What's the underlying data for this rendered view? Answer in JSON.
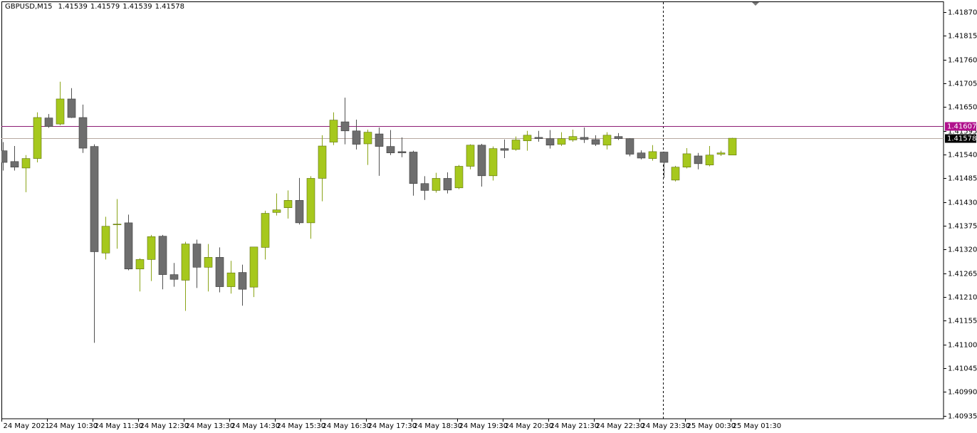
{
  "chart_data": {
    "type": "candlestick",
    "symbol": "GBPUSD,M15",
    "quote": [
      "1.41539",
      "1.41579",
      "1.41539",
      "1.41578"
    ],
    "categories": [
      "24 May 2021",
      null,
      null,
      null,
      "24 May 10:30",
      null,
      null,
      null,
      "24 May 11:30",
      null,
      null,
      null,
      "24 May 12:30",
      null,
      null,
      null,
      "24 May 13:30",
      null,
      null,
      null,
      "24 May 14:30",
      null,
      null,
      null,
      "24 May 15:30",
      null,
      null,
      null,
      "24 May 16:30",
      null,
      null,
      null,
      "24 May 17:30",
      null,
      null,
      null,
      "24 May 18:30",
      null,
      null,
      null,
      "24 May 19:30",
      null,
      null,
      null,
      "24 May 20:30",
      null,
      null,
      null,
      "24 May 21:30",
      null,
      null,
      null,
      "24 May 22:30",
      null,
      null,
      null,
      "24 May 23:30",
      null,
      null,
      null,
      "25 May 00:30",
      null,
      null,
      null,
      "25 May 01:30"
    ],
    "open": [
      1.41549,
      1.41524,
      1.41509,
      1.41531,
      1.41625,
      1.41611,
      1.41669,
      1.41626,
      1.41559,
      1.41312,
      1.41378,
      1.41382,
      1.41275,
      1.41297,
      1.41351,
      1.41262,
      1.41249,
      1.41333,
      1.41279,
      1.41302,
      1.41234,
      1.41267,
      1.41233,
      1.41325,
      1.41406,
      1.41417,
      1.41434,
      1.41382,
      1.41485,
      1.41569,
      1.41616,
      1.41595,
      1.41565,
      1.41588,
      1.41559,
      1.41547,
      1.41546,
      1.41473,
      1.41457,
      1.41485,
      1.41463,
      1.41513,
      1.41562,
      1.41491,
      1.41554,
      1.41552,
      1.41572,
      1.4158,
      1.41577,
      1.41564,
      1.41574,
      1.4158,
      1.41575,
      1.41562,
      1.41582,
      1.41577,
      1.41544,
      1.41531,
      1.41546,
      1.41481,
      1.41511,
      1.41537,
      1.41516,
      1.41541,
      1.41539
    ],
    "high": [
      1.41569,
      1.4156,
      1.41539,
      1.41638,
      1.41634,
      1.41709,
      1.41694,
      1.41656,
      1.41564,
      1.41396,
      1.41437,
      1.41401,
      1.413,
      1.41354,
      1.41354,
      1.41289,
      1.41338,
      1.41343,
      1.41333,
      1.41325,
      1.41294,
      1.41285,
      1.41326,
      1.4141,
      1.4145,
      1.41457,
      1.41486,
      1.4149,
      1.41585,
      1.41638,
      1.41672,
      1.41621,
      1.41598,
      1.41603,
      1.41597,
      1.4158,
      1.41549,
      1.4149,
      1.41498,
      1.41499,
      1.41516,
      1.41564,
      1.41565,
      1.41559,
      1.41575,
      1.41582,
      1.41595,
      1.41595,
      1.41597,
      1.41592,
      1.41598,
      1.41603,
      1.41585,
      1.41592,
      1.4159,
      1.41578,
      1.4155,
      1.41562,
      1.41547,
      1.41514,
      1.41555,
      1.41544,
      1.4156,
      1.41549,
      1.41579
    ],
    "low": [
      1.41503,
      1.41503,
      1.41453,
      1.41522,
      1.41602,
      1.41608,
      1.41625,
      1.41544,
      1.41104,
      1.41297,
      1.41322,
      1.41272,
      1.41223,
      1.41247,
      1.41228,
      1.41234,
      1.41178,
      1.41231,
      1.41223,
      1.41221,
      1.41218,
      1.4119,
      1.4121,
      1.41297,
      1.41399,
      1.41392,
      1.41378,
      1.41345,
      1.41432,
      1.41562,
      1.41564,
      1.41552,
      1.41516,
      1.41491,
      1.41539,
      1.41534,
      1.41445,
      1.41435,
      1.41452,
      1.4145,
      1.4146,
      1.41506,
      1.41466,
      1.4148,
      1.41532,
      1.41549,
      1.41549,
      1.4157,
      1.41554,
      1.4156,
      1.4157,
      1.41567,
      1.4156,
      1.41552,
      1.41574,
      1.41536,
      1.41529,
      1.41526,
      1.41486,
      1.41478,
      1.41508,
      1.41506,
      1.41513,
      1.41537,
      1.41539
    ],
    "close": [
      1.41522,
      1.41511,
      1.41531,
      1.41626,
      1.41605,
      1.41669,
      1.41626,
      1.41555,
      1.41315,
      1.41374,
      1.41379,
      1.41275,
      1.41297,
      1.4135,
      1.41262,
      1.41251,
      1.41333,
      1.41279,
      1.41302,
      1.41234,
      1.41266,
      1.41228,
      1.41326,
      1.41404,
      1.41412,
      1.41434,
      1.41382,
      1.41485,
      1.4156,
      1.4162,
      1.41595,
      1.41564,
      1.41592,
      1.41559,
      1.41544,
      1.41544,
      1.41473,
      1.41457,
      1.41485,
      1.41458,
      1.41513,
      1.41562,
      1.41491,
      1.41554,
      1.4155,
      1.41574,
      1.41585,
      1.41577,
      1.41562,
      1.41577,
      1.41582,
      1.41575,
      1.41564,
      1.41585,
      1.41577,
      1.41541,
      1.41532,
      1.41547,
      1.41522,
      1.41511,
      1.41542,
      1.41519,
      1.41539,
      1.41544,
      1.41578
    ],
    "up_color": "#a6c81d",
    "down_color": "#6e6e6e",
    "ylim": [
      1.40928,
      1.41895
    ],
    "yticks": [
      {
        "value": 1.40935,
        "label": "1.40935"
      },
      {
        "value": 1.4099,
        "label": "1.40990"
      },
      {
        "value": 1.41045,
        "label": "1.41045"
      },
      {
        "value": 1.411,
        "label": "1.41100"
      },
      {
        "value": 1.41155,
        "label": "1.41155"
      },
      {
        "value": 1.4121,
        "label": "1.41210"
      },
      {
        "value": 1.41265,
        "label": "1.41265"
      },
      {
        "value": 1.4132,
        "label": "1.41320"
      },
      {
        "value": 1.41375,
        "label": "1.41375"
      },
      {
        "value": 1.4143,
        "label": "1.41430"
      },
      {
        "value": 1.41485,
        "label": "1.41485"
      },
      {
        "value": 1.4154,
        "label": "1.41540"
      },
      {
        "value": 1.41595,
        "label": "1.41595"
      },
      {
        "value": 1.4165,
        "label": "1.41650"
      },
      {
        "value": 1.41705,
        "label": "1.41705"
      },
      {
        "value": 1.4176,
        "label": "1.41760"
      },
      {
        "value": 1.41815,
        "label": "1.41815"
      },
      {
        "value": 1.4187,
        "label": "1.41870"
      }
    ],
    "levels": [
      {
        "value": 1.41607,
        "label": "1.41607",
        "color": "#8c1c74",
        "label_color": "#b0108c"
      },
      {
        "value": 1.41578,
        "label": "1.41578",
        "color": "#b7a9a0",
        "label_color": "#000000"
      }
    ]
  }
}
